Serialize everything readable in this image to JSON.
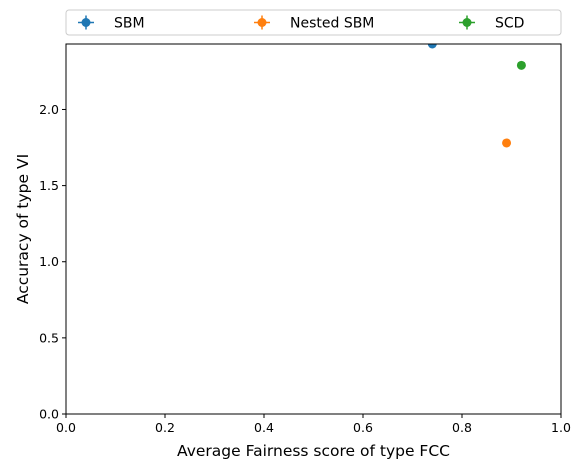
{
  "chart_data": {
    "type": "scatter",
    "xlabel": "Average Fairness score of type FCC",
    "ylabel": "Accuracy of type VI",
    "xlim": [
      0.0,
      1.0
    ],
    "ylim": [
      0.0,
      2.43
    ],
    "xticks": [
      "0.0",
      "0.2",
      "0.4",
      "0.6",
      "0.8",
      "1.0"
    ],
    "yticks": [
      "0.0",
      "0.5",
      "1.0",
      "1.5",
      "2.0"
    ],
    "grid": false,
    "legend": {
      "placement": "top-outside",
      "columns": 3
    },
    "series": [
      {
        "name": "SBM",
        "color": "#1f77b4",
        "x": [
          0.74
        ],
        "y": [
          2.43
        ]
      },
      {
        "name": "Nested SBM",
        "color": "#ff7f0e",
        "x": [
          0.89
        ],
        "y": [
          1.78
        ]
      },
      {
        "name": "SCD",
        "color": "#2ca02c",
        "x": [
          0.92
        ],
        "y": [
          2.29
        ]
      }
    ]
  }
}
